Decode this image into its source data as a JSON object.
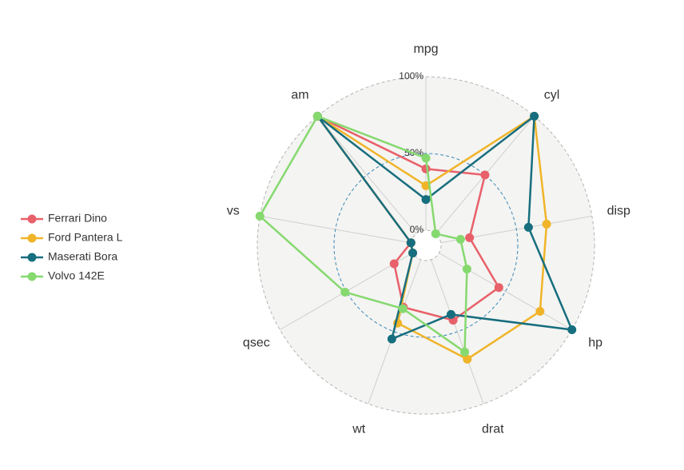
{
  "chart_data": {
    "type": "radar",
    "categories": [
      "mpg",
      "cyl",
      "disp",
      "hp",
      "drat",
      "wt",
      "qsec",
      "vs",
      "am"
    ],
    "rlim": [
      0,
      100
    ],
    "rticks": [
      {
        "value": 0,
        "label": "0%"
      },
      {
        "value": 50,
        "label": "50%"
      },
      {
        "value": 100,
        "label": "100%"
      }
    ],
    "series": [
      {
        "name": "Ferrari Dino",
        "color": "#e8606a",
        "values": [
          40,
          50,
          19,
          45,
          42,
          33,
          14,
          0,
          100
        ]
      },
      {
        "name": "Ford Pantera L",
        "color": "#f0b429",
        "values": [
          29,
          100,
          70,
          76,
          69,
          44,
          0,
          0,
          100
        ]
      },
      {
        "name": "Maserati Bora",
        "color": "#176e7e",
        "values": [
          20,
          100,
          58,
          100,
          38,
          55,
          0,
          0,
          100
        ]
      },
      {
        "name": "Volvo 142E",
        "color": "#86d96f",
        "values": [
          47,
          0,
          13,
          21,
          64,
          34,
          51,
          100,
          100
        ]
      }
    ]
  }
}
